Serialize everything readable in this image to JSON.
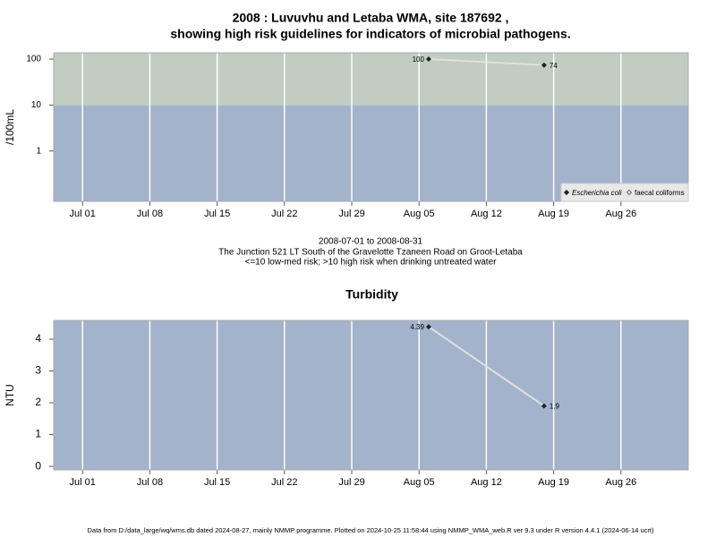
{
  "title": [
    "2008 : Luvuvhu and Letaba WMA, site 187692 ,",
    "showing high risk guidelines for indicators of microbial pathogens."
  ],
  "notes": [
    "2008-07-01 to 2008-08-31",
    "The Junction 521 LT South of the Gravelotte Tzaneen Road on Groot-Letaba",
    "<=10 low-med risk; >10 high risk when drinking untreated water"
  ],
  "footer": "Data from D:/data_large/wq/wms.db dated 2024-08-27, mainly NMMP programme. Plotted on 2024-10-25 11:58:44 using NMMP_WMA_web.R ver 9.3 under R version 4.4.1 (2024-06-14 ucrt)",
  "chart_data": [
    {
      "type": "line",
      "y_label": "/100mL",
      "log_scale": true,
      "grid": true,
      "risk_threshold": 10,
      "band_colors": [
        "#a3b3cc",
        "#c1cdc1"
      ],
      "x": [
        "2008-08-06",
        "2008-08-18"
      ],
      "series": [
        {
          "name": "Escherichia coli",
          "color": "#222222",
          "values": [
            100,
            74
          ]
        },
        {
          "name": "faecal coliforms",
          "color": "#444444",
          "values": [
            null,
            null
          ]
        }
      ],
      "legend": "bottom right",
      "xlim": [
        "2008-06-28",
        "2008-09-02"
      ],
      "xticks": [
        {
          "value": "2008-07-01",
          "label": "Jul 01"
        },
        {
          "value": "2008-07-08",
          "label": "Jul 08"
        },
        {
          "value": "2008-07-15",
          "label": "Jul 15"
        },
        {
          "value": "2008-07-22",
          "label": "Jul 22"
        },
        {
          "value": "2008-07-29",
          "label": "Jul 29"
        },
        {
          "value": "2008-08-05",
          "label": "Aug 05"
        },
        {
          "value": "2008-08-12",
          "label": "Aug 12"
        },
        {
          "value": "2008-08-19",
          "label": "Aug 19"
        },
        {
          "value": "2008-08-26",
          "label": "Aug 26"
        }
      ],
      "ylim": [
        0.08,
        137
      ],
      "yticks": [
        1,
        10,
        100
      ]
    },
    {
      "type": "line",
      "title": "Turbidity",
      "y_label": "NTU",
      "log_scale": false,
      "grid": true,
      "band_colors": [
        "#a3b3cc"
      ],
      "x": [
        "2008-08-06",
        "2008-08-18"
      ],
      "series": [
        {
          "color": "#222222",
          "values": [
            4.39,
            1.9
          ]
        }
      ],
      "xlim": [
        "2008-06-28",
        "2008-09-02"
      ],
      "xticks": [
        {
          "value": "2008-07-01",
          "label": "Jul 01"
        },
        {
          "value": "2008-07-08",
          "label": "Jul 08"
        },
        {
          "value": "2008-07-15",
          "label": "Jul 15"
        },
        {
          "value": "2008-07-22",
          "label": "Jul 22"
        },
        {
          "value": "2008-07-29",
          "label": "Jul 29"
        },
        {
          "value": "2008-08-05",
          "label": "Aug 05"
        },
        {
          "value": "2008-08-12",
          "label": "Aug 12"
        },
        {
          "value": "2008-08-19",
          "label": "Aug 19"
        },
        {
          "value": "2008-08-26",
          "label": "Aug 26"
        }
      ],
      "ylim": [
        -0.11,
        4.59
      ],
      "yticks": [
        0,
        1,
        2,
        3,
        4
      ]
    }
  ]
}
